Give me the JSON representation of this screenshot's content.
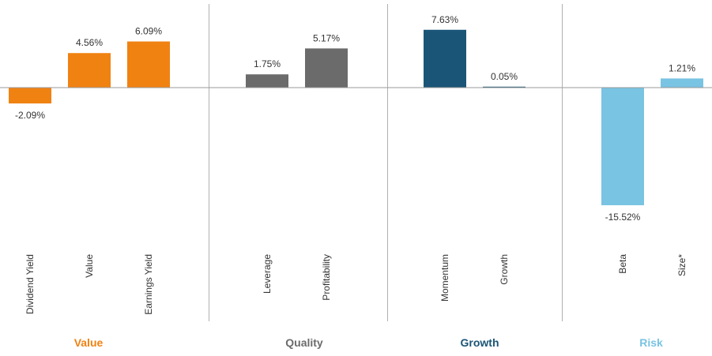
{
  "chart_data": {
    "type": "bar",
    "title": "",
    "xlabel": "",
    "ylabel": "",
    "ylim": [
      -16,
      8
    ],
    "grid": false,
    "categories": [
      "Dividend Yield",
      "Value",
      "Earnings Yield",
      "Leverage",
      "Profitability",
      "Momentum",
      "Growth",
      "Beta",
      "Size*"
    ],
    "values": [
      -2.09,
      4.56,
      6.09,
      1.75,
      5.17,
      7.63,
      0.05,
      -15.52,
      1.21
    ],
    "value_labels": [
      "-2.09%",
      "4.56%",
      "6.09%",
      "1.75%",
      "5.17%",
      "7.63%",
      "0.05%",
      "-15.52%",
      "1.21%"
    ],
    "groups": [
      {
        "name": "Value",
        "color": "#f08212",
        "members": [
          0,
          1,
          2
        ]
      },
      {
        "name": "Quality",
        "color": "#6b6b6b",
        "members": [
          3,
          4
        ]
      },
      {
        "name": "Growth",
        "color": "#1a5577",
        "members": [
          5,
          6
        ]
      },
      {
        "name": "Risk",
        "color": "#79c3e3",
        "members": [
          7,
          8
        ]
      }
    ]
  },
  "colors": {
    "value": "#f08212",
    "quality": "#6b6b6b",
    "growth": "#1a5577",
    "risk": "#79c3e3",
    "axis": "#9a9a9a",
    "text": "#333333"
  }
}
